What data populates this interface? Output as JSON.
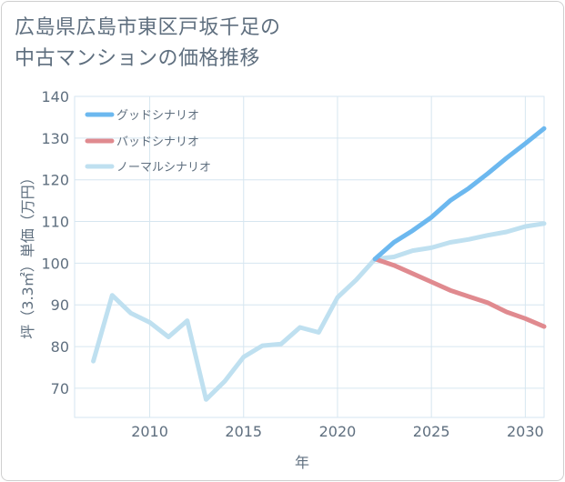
{
  "title_lines": [
    "広島県広島市東区戸坂千足の",
    "中古マンションの価格推移"
  ],
  "chart_data": {
    "type": "line",
    "xlabel": "年",
    "ylabel": "坪（3.3㎡）単価（万円）",
    "xlim": [
      2006,
      2031
    ],
    "ylim": [
      63,
      140
    ],
    "x_ticks": [
      2010,
      2015,
      2020,
      2025,
      2030
    ],
    "y_ticks": [
      70,
      80,
      90,
      100,
      110,
      120,
      130,
      140
    ],
    "grid": true,
    "legend_position": "top-left",
    "series": [
      {
        "name": "グッドシナリオ",
        "color": "#6cb8ef",
        "x": [
          2022,
          2023,
          2024,
          2025,
          2026,
          2027,
          2028,
          2029,
          2030,
          2031
        ],
        "values": [
          101,
          105,
          107.8,
          111,
          115,
          118,
          121.5,
          125.2,
          128.7,
          132.3
        ]
      },
      {
        "name": "バッドシナリオ",
        "color": "#e08a8f",
        "x": [
          2022,
          2023,
          2024,
          2025,
          2026,
          2027,
          2028,
          2029,
          2030,
          2031
        ],
        "values": [
          101,
          99.5,
          97.5,
          95.5,
          93.5,
          92,
          90.5,
          88.3,
          86.7,
          84.8
        ]
      },
      {
        "name": "ノーマルシナリオ",
        "color": "#bfe0f0",
        "x": [
          2007,
          2008,
          2009,
          2010,
          2011,
          2012,
          2013,
          2014,
          2015,
          2016,
          2017,
          2018,
          2019,
          2020,
          2021,
          2022,
          2023,
          2024,
          2025,
          2026,
          2027,
          2028,
          2029,
          2030,
          2031
        ],
        "values": [
          76.5,
          92.3,
          88,
          85.8,
          82.3,
          86.2,
          67.3,
          71.7,
          77.5,
          80.2,
          80.6,
          84.6,
          83.4,
          91.8,
          96,
          101,
          101.5,
          103,
          103.7,
          105,
          105.7,
          106.7,
          107.5,
          108.8,
          109.5
        ]
      }
    ]
  }
}
